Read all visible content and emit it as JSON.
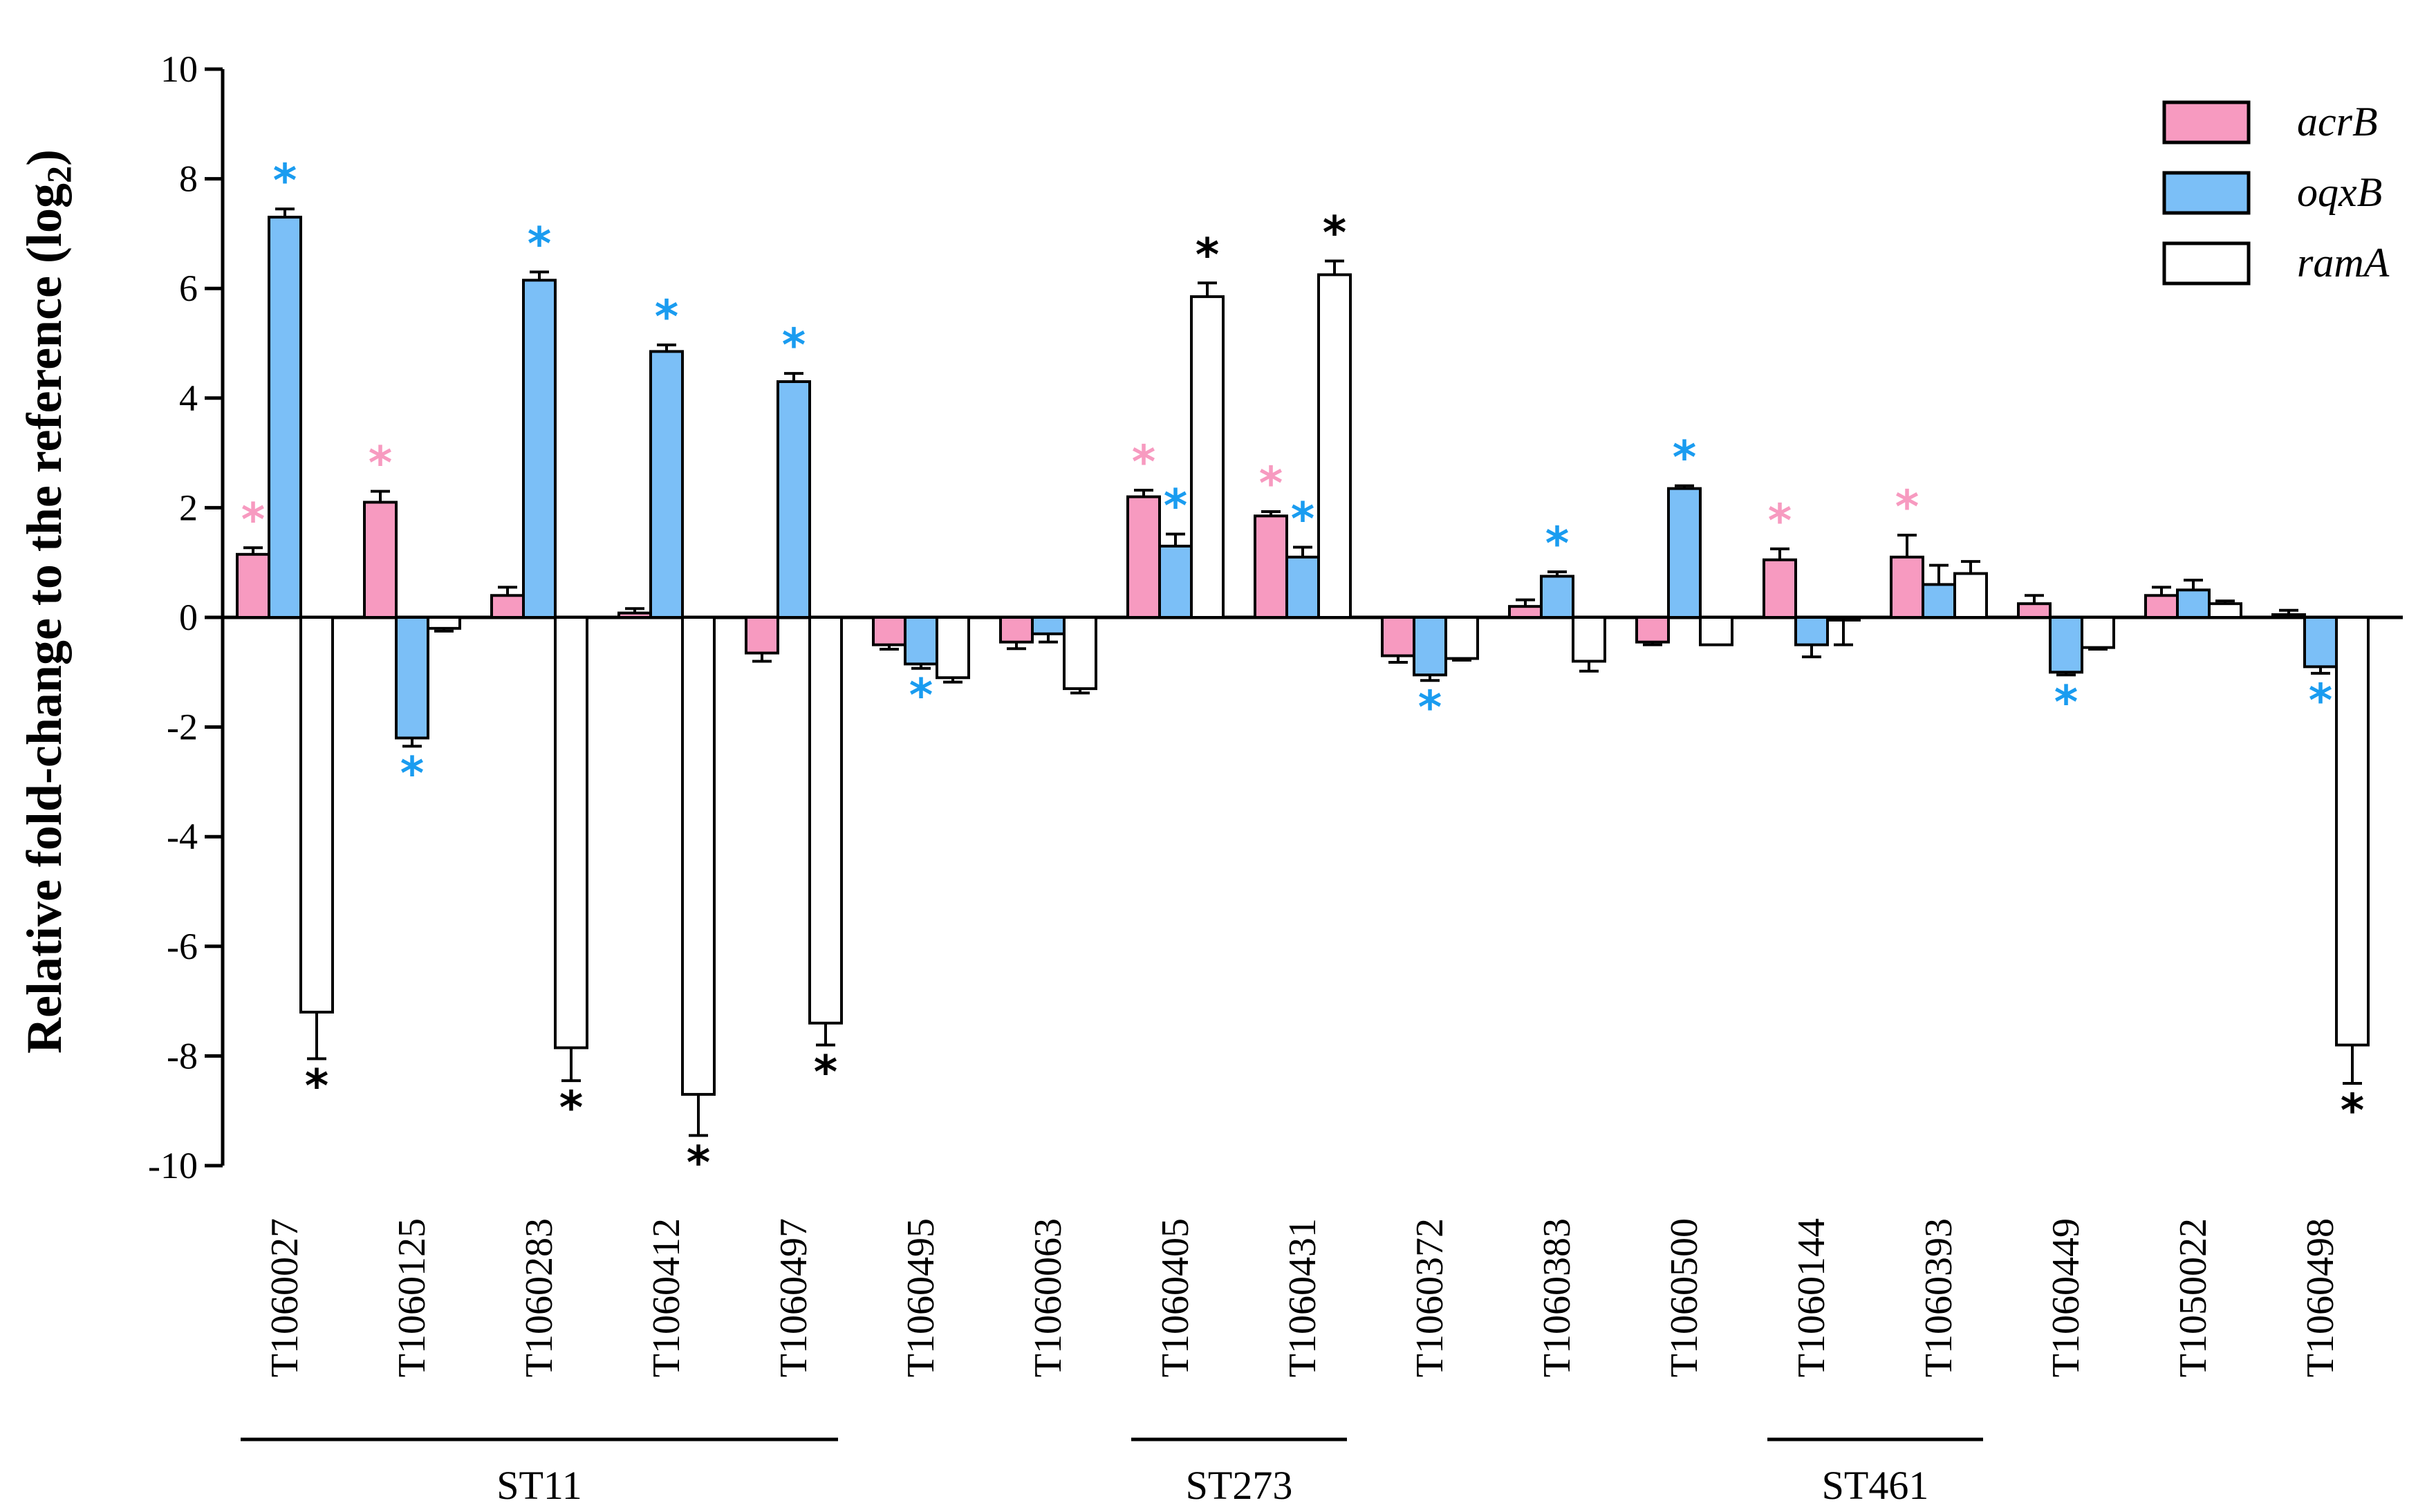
{
  "chart_data": {
    "type": "bar",
    "title": "",
    "xlabel": "",
    "ylabel": "Relative fold-change to the reference (log",
    "ylabel_sub": "2",
    "ylabel_close": ")",
    "ylim": [
      -10,
      10
    ],
    "yticks": [
      10,
      8,
      6,
      4,
      2,
      0,
      -2,
      -4,
      -6,
      -8,
      -10
    ],
    "ytick_labels": [
      "10",
      "8",
      "6",
      "4",
      "2",
      "0",
      "-2",
      "-4",
      "-6",
      "-8",
      "-10"
    ],
    "categories": [
      "T1060027",
      "T1060125",
      "T1060283",
      "T1060412",
      "T1060497",
      "T1060495",
      "T1060063",
      "T1060405",
      "T1060431",
      "T1060372",
      "T1060383",
      "T1060500",
      "T1060144",
      "T1060393",
      "T1060449",
      "T1050022",
      "T1060498"
    ],
    "series": [
      {
        "name": "acrB",
        "color": "#f79ac0",
        "values": [
          1.15,
          2.1,
          0.4,
          0.08,
          -0.65,
          -0.5,
          -0.45,
          2.2,
          1.85,
          -0.7,
          0.2,
          -0.45,
          1.05,
          1.1,
          0.25,
          0.4,
          0.05
        ],
        "errors": [
          0.12,
          0.2,
          0.15,
          0.08,
          0.15,
          0.08,
          0.12,
          0.12,
          0.08,
          0.12,
          0.12,
          0.05,
          0.2,
          0.4,
          0.15,
          0.15,
          0.08
        ],
        "significant": [
          true,
          true,
          false,
          false,
          false,
          false,
          false,
          true,
          true,
          false,
          false,
          false,
          true,
          true,
          false,
          false,
          false
        ]
      },
      {
        "name": "oqxB",
        "color": "#7bbff7",
        "values": [
          7.3,
          -2.2,
          6.15,
          4.85,
          4.3,
          -0.85,
          -0.3,
          1.3,
          1.1,
          -1.05,
          0.75,
          2.35,
          -0.5,
          0.6,
          -1.0,
          0.5,
          -0.9
        ],
        "errors": [
          0.15,
          0.15,
          0.15,
          0.12,
          0.15,
          0.08,
          0.15,
          0.22,
          0.18,
          0.1,
          0.08,
          0.05,
          0.22,
          0.35,
          0.05,
          0.18,
          0.12
        ],
        "significant": [
          true,
          true,
          true,
          true,
          true,
          true,
          false,
          true,
          true,
          true,
          true,
          true,
          false,
          false,
          true,
          false,
          true
        ]
      },
      {
        "name": "ramA",
        "color": "#ffffff",
        "values": [
          -7.2,
          -0.2,
          -7.85,
          -8.7,
          -7.4,
          -1.1,
          -1.3,
          5.85,
          6.25,
          -0.75,
          -0.8,
          -0.5,
          -0.05,
          0.8,
          -0.55,
          0.25,
          -7.8
        ],
        "errors": [
          0.85,
          0.05,
          0.6,
          0.75,
          0.4,
          0.08,
          0.08,
          0.25,
          0.25,
          0.03,
          0.18,
          0.0,
          0.45,
          0.22,
          0.03,
          0.05,
          0.7
        ],
        "significant": [
          true,
          false,
          true,
          true,
          true,
          false,
          false,
          true,
          true,
          false,
          false,
          false,
          false,
          false,
          false,
          false,
          true
        ]
      }
    ],
    "groups": [
      {
        "label": "ST11",
        "start": 0,
        "end": 4
      },
      {
        "label": "ST273",
        "start": 7,
        "end": 8
      },
      {
        "label": "ST461",
        "start": 12,
        "end": 13
      }
    ],
    "significance_marker": "*",
    "star_colors": [
      "#f79ac0",
      "#1a9cf0",
      "#000000"
    ],
    "legend_position": "top-right"
  }
}
